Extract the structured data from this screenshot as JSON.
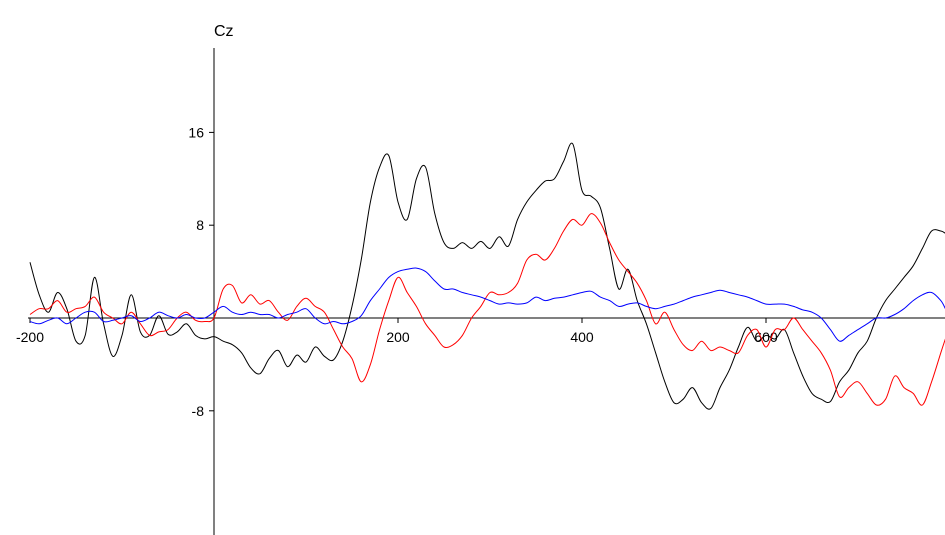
{
  "chart_data": {
    "type": "line",
    "title": "Cz",
    "xlabel": "",
    "ylabel": "",
    "xlim": [
      -200,
      795
    ],
    "ylim": [
      -20,
      24
    ],
    "x_ticks": [
      -200,
      200,
      400,
      600
    ],
    "y_ticks": [
      16,
      8,
      -8
    ],
    "grid": false,
    "legend": "none",
    "series": [
      {
        "color": "#000000",
        "x": [
          -200,
          -190,
          -180,
          -170,
          -160,
          -150,
          -140,
          -130,
          -120,
          -110,
          -100,
          -90,
          -80,
          -70,
          -60,
          -50,
          -40,
          -30,
          -20,
          -10,
          0,
          10,
          20,
          30,
          40,
          50,
          60,
          70,
          80,
          90,
          100,
          110,
          120,
          130,
          140,
          150,
          160,
          170,
          180,
          190,
          200,
          210,
          220,
          230,
          240,
          250,
          260,
          270,
          280,
          290,
          300,
          310,
          320,
          330,
          340,
          350,
          360,
          370,
          380,
          390,
          400,
          410,
          420,
          430,
          440,
          450,
          460,
          470,
          480,
          490,
          500,
          510,
          520,
          530,
          540,
          550,
          560,
          570,
          580,
          590,
          600,
          610,
          620,
          630,
          640,
          650,
          660,
          670,
          680,
          690,
          700,
          710,
          720,
          730,
          740,
          750,
          760,
          770,
          780,
          790,
          795
        ],
        "values": [
          4.8,
          2,
          0.5,
          2.2,
          0.8,
          -2,
          -1.5,
          3.5,
          -0.5,
          -3.3,
          -1.5,
          2,
          -1.2,
          -1.5,
          0.2,
          -1.4,
          -1.2,
          -0.5,
          -1.5,
          -1.8,
          -1.6,
          -2,
          -2.3,
          -3,
          -4.3,
          -4.8,
          -3.5,
          -2.8,
          -4.2,
          -3.2,
          -3.8,
          -2.5,
          -3.3,
          -3.6,
          -2,
          1,
          5,
          10,
          13,
          14,
          10,
          8.5,
          12,
          13,
          9,
          6.5,
          6,
          6.5,
          6,
          6.6,
          6,
          7,
          6.2,
          8.5,
          10,
          11,
          11.8,
          12,
          13.5,
          15,
          11,
          10.5,
          9.5,
          6,
          2.5,
          4.2,
          1.5,
          -0.5,
          -3,
          -5.5,
          -7.3,
          -7,
          -6,
          -7.3,
          -7.8,
          -6,
          -4.5,
          -2.5,
          -0.8,
          -2,
          -1.5,
          -1.8,
          -1,
          -3,
          -5,
          -6.5,
          -7,
          -7.2,
          -5.5,
          -4.5,
          -3,
          -2,
          0,
          1.5,
          2.5,
          3.5,
          4.5,
          6,
          7.5,
          7.5,
          7.3
        ]
      },
      {
        "color": "#ff0000",
        "x": [
          -200,
          -190,
          -180,
          -170,
          -160,
          -150,
          -140,
          -130,
          -120,
          -110,
          -100,
          -90,
          -80,
          -70,
          -60,
          -50,
          -40,
          -30,
          -20,
          -10,
          0,
          10,
          20,
          30,
          40,
          50,
          60,
          70,
          80,
          90,
          100,
          110,
          120,
          130,
          140,
          150,
          160,
          170,
          180,
          190,
          200,
          210,
          220,
          230,
          240,
          250,
          260,
          270,
          280,
          290,
          300,
          310,
          320,
          330,
          340,
          350,
          360,
          370,
          380,
          390,
          400,
          410,
          420,
          430,
          440,
          450,
          460,
          470,
          480,
          490,
          500,
          510,
          520,
          530,
          540,
          550,
          560,
          570,
          580,
          590,
          600,
          610,
          620,
          630,
          640,
          650,
          660,
          670,
          680,
          690,
          700,
          710,
          720,
          730,
          740,
          750,
          760,
          770,
          780,
          790,
          795
        ],
        "values": [
          0.3,
          0.8,
          0.8,
          1.5,
          0.5,
          0.8,
          1,
          1.8,
          0.5,
          0,
          -0.5,
          0.5,
          -0.5,
          -1.5,
          -1.2,
          -1,
          0,
          0.5,
          -0.2,
          -0.3,
          0,
          2.5,
          2.8,
          1.3,
          2,
          1.2,
          1.5,
          0.5,
          -0.2,
          1,
          1.7,
          1,
          0.5,
          -1,
          -2.5,
          -3.5,
          -5.5,
          -4,
          -1,
          1.5,
          3.5,
          2.2,
          1,
          -0.5,
          -1.5,
          -2.5,
          -2.3,
          -1.5,
          0,
          1,
          2.2,
          2,
          2.2,
          3,
          5,
          5.5,
          5,
          6,
          7.5,
          8.5,
          8,
          9,
          8.2,
          6.5,
          5,
          4,
          3,
          1.5,
          -0.5,
          0.5,
          -1,
          -2.3,
          -2.8,
          -2,
          -2.8,
          -2.5,
          -2.8,
          -3,
          -1.5,
          -1,
          -2.5,
          -1,
          -1,
          0,
          -1,
          -2,
          -3,
          -4.5,
          -6.8,
          -6,
          -5.5,
          -6.5,
          -7.5,
          -7,
          -5,
          -6,
          -6.5,
          -7.5,
          -5.5,
          -3,
          -1.8
        ]
      },
      {
        "color": "#0000ff",
        "x": [
          -200,
          -190,
          -180,
          -170,
          -160,
          -150,
          -140,
          -130,
          -120,
          -110,
          -100,
          -90,
          -80,
          -70,
          -60,
          -50,
          -40,
          -30,
          -20,
          -10,
          0,
          10,
          20,
          30,
          40,
          50,
          60,
          70,
          80,
          90,
          100,
          110,
          120,
          130,
          140,
          150,
          160,
          170,
          180,
          190,
          200,
          210,
          220,
          230,
          240,
          250,
          260,
          270,
          280,
          290,
          300,
          310,
          320,
          330,
          340,
          350,
          360,
          370,
          380,
          390,
          400,
          410,
          420,
          430,
          440,
          450,
          460,
          470,
          480,
          490,
          500,
          510,
          520,
          530,
          540,
          550,
          560,
          570,
          580,
          590,
          600,
          610,
          620,
          630,
          640,
          650,
          660,
          670,
          680,
          690,
          700,
          710,
          720,
          730,
          740,
          750,
          760,
          770,
          780,
          790,
          795
        ],
        "values": [
          -0.3,
          -0.5,
          -0.2,
          0,
          -0.5,
          0,
          0.5,
          0.5,
          -0.3,
          -0.2,
          0,
          0.2,
          -0.3,
          0,
          0.5,
          0.2,
          0,
          0.3,
          0,
          0,
          0.5,
          1,
          0.5,
          0.3,
          0.5,
          0.3,
          0.3,
          0,
          0.3,
          0.5,
          0.8,
          0,
          -0.5,
          -0.3,
          -0.5,
          -0.3,
          0.2,
          1.5,
          2.5,
          3.5,
          4,
          4.2,
          4.3,
          4,
          3.2,
          2.5,
          2.5,
          2.2,
          2,
          1.8,
          1.5,
          1.2,
          1.3,
          1.2,
          1.3,
          1.8,
          1.5,
          1.7,
          1.8,
          2,
          2.2,
          2.3,
          1.8,
          1.5,
          1,
          1.2,
          1.3,
          1,
          0.8,
          1,
          1.2,
          1.5,
          1.8,
          2,
          2.2,
          2.4,
          2.2,
          2,
          1.8,
          1.5,
          1.2,
          1.2,
          1.2,
          1,
          0.7,
          0.5,
          0,
          -1,
          -2,
          -1.5,
          -1,
          -0.5,
          0,
          0,
          0.3,
          0.8,
          1.5,
          2,
          2.2,
          1.5,
          0.8
        ]
      }
    ]
  }
}
